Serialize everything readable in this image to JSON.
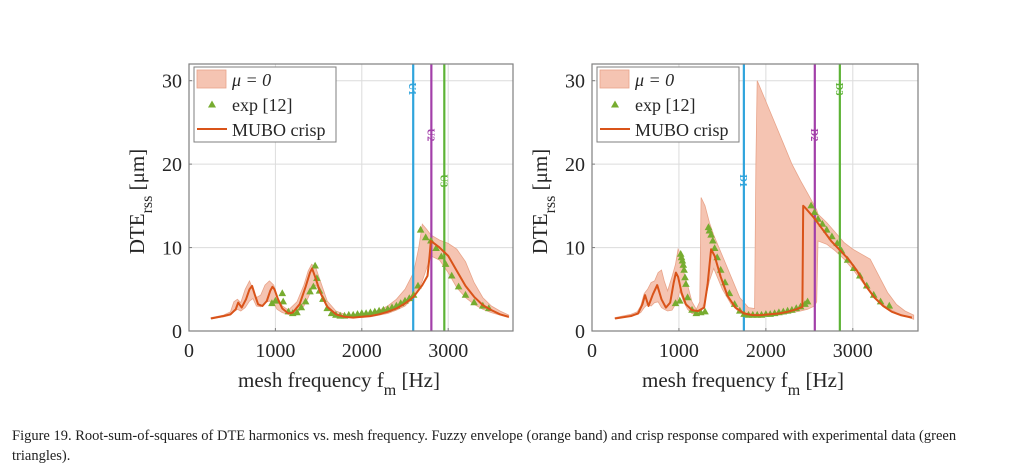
{
  "colors": {
    "band_fill": "#F5C4B2",
    "band_edge": "#E8A48A",
    "crisp": "#D95319",
    "exp": "#77AC30",
    "line1": "#2FA4DC",
    "line2": "#A23FA9",
    "line3": "#5DB336",
    "grid": "#DCDCDC",
    "axis": "#7F7F7F"
  },
  "caption": "Figure 19. Root-sum-of-squares of DTE harmonics vs. mesh frequency. Fuzzy envelope (orange band) and crisp response compared with experimental data (green triangles).",
  "chart_data": [
    {
      "type": "line",
      "panel": "left",
      "title": "",
      "xlabel": "mesh frequency f",
      "xlabel_sub": "m",
      "xlabel_unit": " [Hz]",
      "ylabel": "DTE",
      "ylabel_sub": "rss",
      "ylabel_unit": " [μm]",
      "xlim": [
        0,
        3750
      ],
      "ylim": [
        0,
        32
      ],
      "xticks": [
        0,
        1000,
        2000,
        3000
      ],
      "yticks": [
        0,
        10,
        20,
        30
      ],
      "grid": true,
      "legend": {
        "placement": "top-left",
        "entries": [
          "μ = 0",
          "exp [12]",
          "MUBO crisp"
        ]
      },
      "vlines": [
        {
          "label": "U1",
          "x": 2595,
          "color_key": "line1",
          "label_y": 29
        },
        {
          "label": "U2",
          "x": 2805,
          "color_key": "line2",
          "label_y": 23.5
        },
        {
          "label": "U3",
          "x": 2955,
          "color_key": "line3",
          "label_y": 18
        }
      ],
      "series": [
        {
          "name": "μ = 0",
          "kind": "band",
          "x": [
            255,
            400,
            480,
            520,
            560,
            600,
            650,
            700,
            740,
            780,
            830,
            880,
            930,
            980,
            1020,
            1080,
            1150,
            1250,
            1330,
            1380,
            1420,
            1470,
            1520,
            1600,
            1700,
            1800,
            1900,
            2000,
            2100,
            2200,
            2300,
            2400,
            2500,
            2600,
            2660,
            2700,
            2750,
            2800,
            2900,
            3000,
            3100,
            3200,
            3300,
            3400,
            3500,
            3600,
            3700
          ],
          "lower": [
            1.5,
            1.7,
            1.9,
            2.3,
            2.6,
            2.4,
            2.8,
            3.6,
            3.9,
            3.0,
            2.9,
            3.4,
            3.6,
            3.3,
            2.6,
            2.2,
            2.0,
            2.2,
            3.0,
            4.0,
            5.0,
            5.5,
            4.5,
            2.8,
            2.0,
            1.7,
            1.6,
            1.6,
            1.7,
            1.9,
            2.1,
            2.5,
            3.0,
            4.0,
            5.0,
            6.0,
            7.5,
            9.0,
            8.5,
            7.0,
            5.2,
            4.0,
            3.2,
            2.6,
            2.2,
            1.9,
            1.6
          ],
          "upper": [
            1.6,
            1.9,
            2.3,
            3.5,
            3.8,
            3.4,
            5.0,
            6.0,
            5.0,
            4.0,
            4.3,
            5.5,
            6.0,
            5.5,
            4.2,
            3.0,
            2.5,
            3.5,
            5.5,
            7.2,
            8.0,
            7.5,
            6.0,
            3.6,
            2.4,
            2.0,
            1.8,
            1.9,
            2.1,
            2.5,
            3.0,
            3.8,
            5.0,
            7.0,
            10.0,
            12.8,
            12.2,
            11.5,
            10.9,
            10.5,
            9.8,
            8.3,
            5.8,
            4.0,
            3.0,
            2.4,
            1.9
          ]
        },
        {
          "name": "exp [12]",
          "kind": "markers",
          "x": [
            960,
            1000,
            1080,
            1090,
            1150,
            1200,
            1250,
            1300,
            1350,
            1400,
            1440,
            1460,
            1480,
            1510,
            1550,
            1600,
            1650,
            1700,
            1750,
            1800,
            1850,
            1900,
            1950,
            2000,
            2050,
            2100,
            2150,
            2200,
            2250,
            2300,
            2350,
            2400,
            2450,
            2500,
            2550,
            2600,
            2650,
            2680,
            2740,
            2800,
            2860,
            2920,
            2970,
            3040,
            3120,
            3200,
            3300,
            3400,
            3470
          ],
          "y": [
            3.3,
            3.6,
            4.5,
            3.5,
            2.3,
            2.1,
            2.2,
            2.8,
            3.5,
            4.7,
            5.3,
            7.8,
            6.3,
            4.8,
            3.8,
            2.7,
            2.1,
            1.9,
            1.8,
            1.8,
            1.9,
            1.9,
            2.0,
            2.1,
            2.1,
            2.2,
            2.3,
            2.4,
            2.5,
            2.6,
            2.8,
            3.0,
            3.3,
            3.6,
            3.9,
            4.3,
            5.4,
            12.1,
            11.2,
            10.8,
            9.9,
            8.9,
            8.0,
            6.6,
            5.3,
            4.3,
            3.4,
            3.0,
            2.7
          ]
        },
        {
          "name": "MUBO crisp",
          "kind": "line",
          "x": [
            255,
            400,
            480,
            540,
            570,
            610,
            660,
            700,
            730,
            760,
            800,
            850,
            900,
            940,
            965,
            990,
            1030,
            1080,
            1150,
            1200,
            1280,
            1350,
            1400,
            1425,
            1460,
            1520,
            1600,
            1700,
            1800,
            1900,
            2000,
            2100,
            2200,
            2300,
            2400,
            2500,
            2600,
            2700,
            2760,
            2785,
            2800,
            2850,
            2900,
            3000,
            3100,
            3200,
            3300,
            3400,
            3500,
            3600,
            3700
          ],
          "y": [
            1.5,
            1.8,
            2.0,
            2.6,
            3.4,
            2.8,
            3.8,
            5.0,
            5.4,
            4.4,
            3.2,
            3.0,
            3.6,
            4.8,
            5.3,
            5.0,
            3.8,
            2.7,
            2.1,
            2.2,
            3.2,
            5.3,
            7.0,
            7.5,
            6.5,
            4.6,
            2.9,
            2.0,
            1.7,
            1.6,
            1.7,
            1.8,
            2.0,
            2.3,
            2.7,
            3.3,
            4.1,
            5.5,
            6.6,
            9.0,
            10.8,
            10.4,
            10.0,
            9.0,
            7.2,
            5.4,
            4.1,
            3.1,
            2.5,
            2.0,
            1.7
          ]
        }
      ]
    },
    {
      "type": "line",
      "panel": "right",
      "title": "",
      "xlabel": "mesh frequency f",
      "xlabel_sub": "m",
      "xlabel_unit": " [Hz]",
      "ylabel": "DTE",
      "ylabel_sub": "rss",
      "ylabel_unit": " [μm]",
      "xlim": [
        0,
        3750
      ],
      "ylim": [
        0,
        32
      ],
      "xticks": [
        0,
        1000,
        2000,
        3000
      ],
      "yticks": [
        0,
        10,
        20,
        30
      ],
      "grid": true,
      "legend": {
        "placement": "top-left",
        "entries": [
          "μ = 0",
          "exp [12]",
          "MUBO crisp"
        ]
      },
      "vlines": [
        {
          "label": "D1",
          "x": 1747,
          "color_key": "line1",
          "label_y": 18
        },
        {
          "label": "D2",
          "x": 2563,
          "color_key": "line2",
          "label_y": 23.5
        },
        {
          "label": "D3",
          "x": 2851,
          "color_key": "line3",
          "label_y": 29
        }
      ],
      "series": [
        {
          "name": "μ = 0",
          "kind": "band",
          "x": [
            264,
            450,
            520,
            560,
            600,
            640,
            680,
            720,
            760,
            800,
            830,
            870,
            920,
            960,
            990,
            1010,
            1050,
            1100,
            1150,
            1200,
            1240,
            1255,
            1300,
            1350,
            1400,
            1500,
            1600,
            1700,
            1800,
            1870,
            1885,
            1900,
            2000,
            2100,
            2200,
            2300,
            2400,
            2480,
            2560,
            2585,
            2600,
            2700,
            2800,
            2900,
            3000,
            3100,
            3200,
            3300,
            3400,
            3500,
            3600,
            3700
          ],
          "lower": [
            1.5,
            1.8,
            2.0,
            2.2,
            2.8,
            3.2,
            3.0,
            3.4,
            3.5,
            2.8,
            2.6,
            2.4,
            2.5,
            3.2,
            4.0,
            4.8,
            3.6,
            2.6,
            2.1,
            2.0,
            2.1,
            2.4,
            3.6,
            6.0,
            7.5,
            5.0,
            3.2,
            2.2,
            1.8,
            1.7,
            1.8,
            1.8,
            1.8,
            1.9,
            2.0,
            2.2,
            2.4,
            2.6,
            3.0,
            3.5,
            10.8,
            10.4,
            9.6,
            8.6,
            7.4,
            6.0,
            4.6,
            3.5,
            2.8,
            2.2,
            1.8,
            1.4
          ],
          "upper": [
            1.6,
            2.0,
            2.3,
            3.0,
            4.5,
            5.0,
            5.8,
            6.0,
            7.0,
            7.3,
            6.0,
            4.8,
            6.5,
            8.0,
            9.8,
            9.4,
            7.2,
            5.5,
            3.5,
            2.6,
            3.5,
            16.0,
            15.0,
            13.0,
            11.5,
            9.0,
            6.5,
            4.0,
            2.8,
            2.7,
            20.0,
            30.0,
            27.5,
            25.0,
            22.5,
            20.0,
            18.0,
            16.5,
            15.0,
            14.5,
            14.0,
            13.0,
            11.8,
            10.6,
            9.8,
            9.2,
            8.6,
            6.6,
            4.6,
            3.2,
            2.4,
            1.9
          ]
        },
        {
          "name": "exp [12]",
          "kind": "markers",
          "x": [
            960,
            1010,
            1020,
            1030,
            1040,
            1050,
            1060,
            1070,
            1080,
            1100,
            1150,
            1200,
            1250,
            1300,
            1340,
            1350,
            1370,
            1390,
            1410,
            1440,
            1480,
            1530,
            1580,
            1640,
            1700,
            1750,
            1800,
            1850,
            1900,
            1950,
            2000,
            2050,
            2100,
            2150,
            2200,
            2250,
            2300,
            2350,
            2400,
            2450,
            2480,
            2520,
            2560,
            2600,
            2650,
            2700,
            2760,
            2820,
            2870,
            2940,
            3010,
            3080,
            3160,
            3240,
            3320,
            3420
          ],
          "y": [
            3.3,
            3.6,
            9.2,
            8.8,
            8.4,
            7.9,
            7.3,
            6.4,
            5.6,
            4.0,
            2.5,
            2.1,
            2.2,
            2.3,
            12.4,
            12.0,
            11.5,
            10.8,
            9.9,
            8.8,
            7.3,
            5.8,
            4.5,
            3.2,
            2.4,
            2.0,
            1.9,
            1.9,
            1.9,
            1.9,
            2.0,
            2.0,
            2.1,
            2.2,
            2.3,
            2.4,
            2.5,
            2.7,
            2.9,
            3.2,
            3.5,
            15.0,
            14.2,
            13.4,
            12.8,
            12.1,
            11.3,
            10.5,
            9.6,
            8.5,
            7.5,
            6.6,
            5.4,
            4.3,
            3.5,
            3.0
          ]
        },
        {
          "name": "MUBO crisp",
          "kind": "line",
          "x": [
            264,
            450,
            530,
            580,
            610,
            650,
            700,
            750,
            800,
            850,
            900,
            940,
            965,
            990,
            1030,
            1080,
            1150,
            1220,
            1290,
            1330,
            1370,
            1410,
            1480,
            1560,
            1650,
            1750,
            1850,
            1950,
            2050,
            2150,
            2250,
            2350,
            2420,
            2430,
            2450,
            2550,
            2650,
            2750,
            2850,
            2950,
            3050,
            3150,
            3250,
            3350,
            3450,
            3550,
            3680
          ],
          "y": [
            1.5,
            1.8,
            2.1,
            3.2,
            4.3,
            3.0,
            4.4,
            5.5,
            3.8,
            2.8,
            3.4,
            5.8,
            7.0,
            6.5,
            4.6,
            3.2,
            2.5,
            2.4,
            2.8,
            5.6,
            9.8,
            9.0,
            6.5,
            4.2,
            2.8,
            2.1,
            1.9,
            1.9,
            2.0,
            2.1,
            2.3,
            2.6,
            2.9,
            15.0,
            14.8,
            13.6,
            12.2,
            10.8,
            9.7,
            8.6,
            7.2,
            5.4,
            4.0,
            3.0,
            2.3,
            1.9,
            1.6
          ]
        }
      ]
    }
  ]
}
